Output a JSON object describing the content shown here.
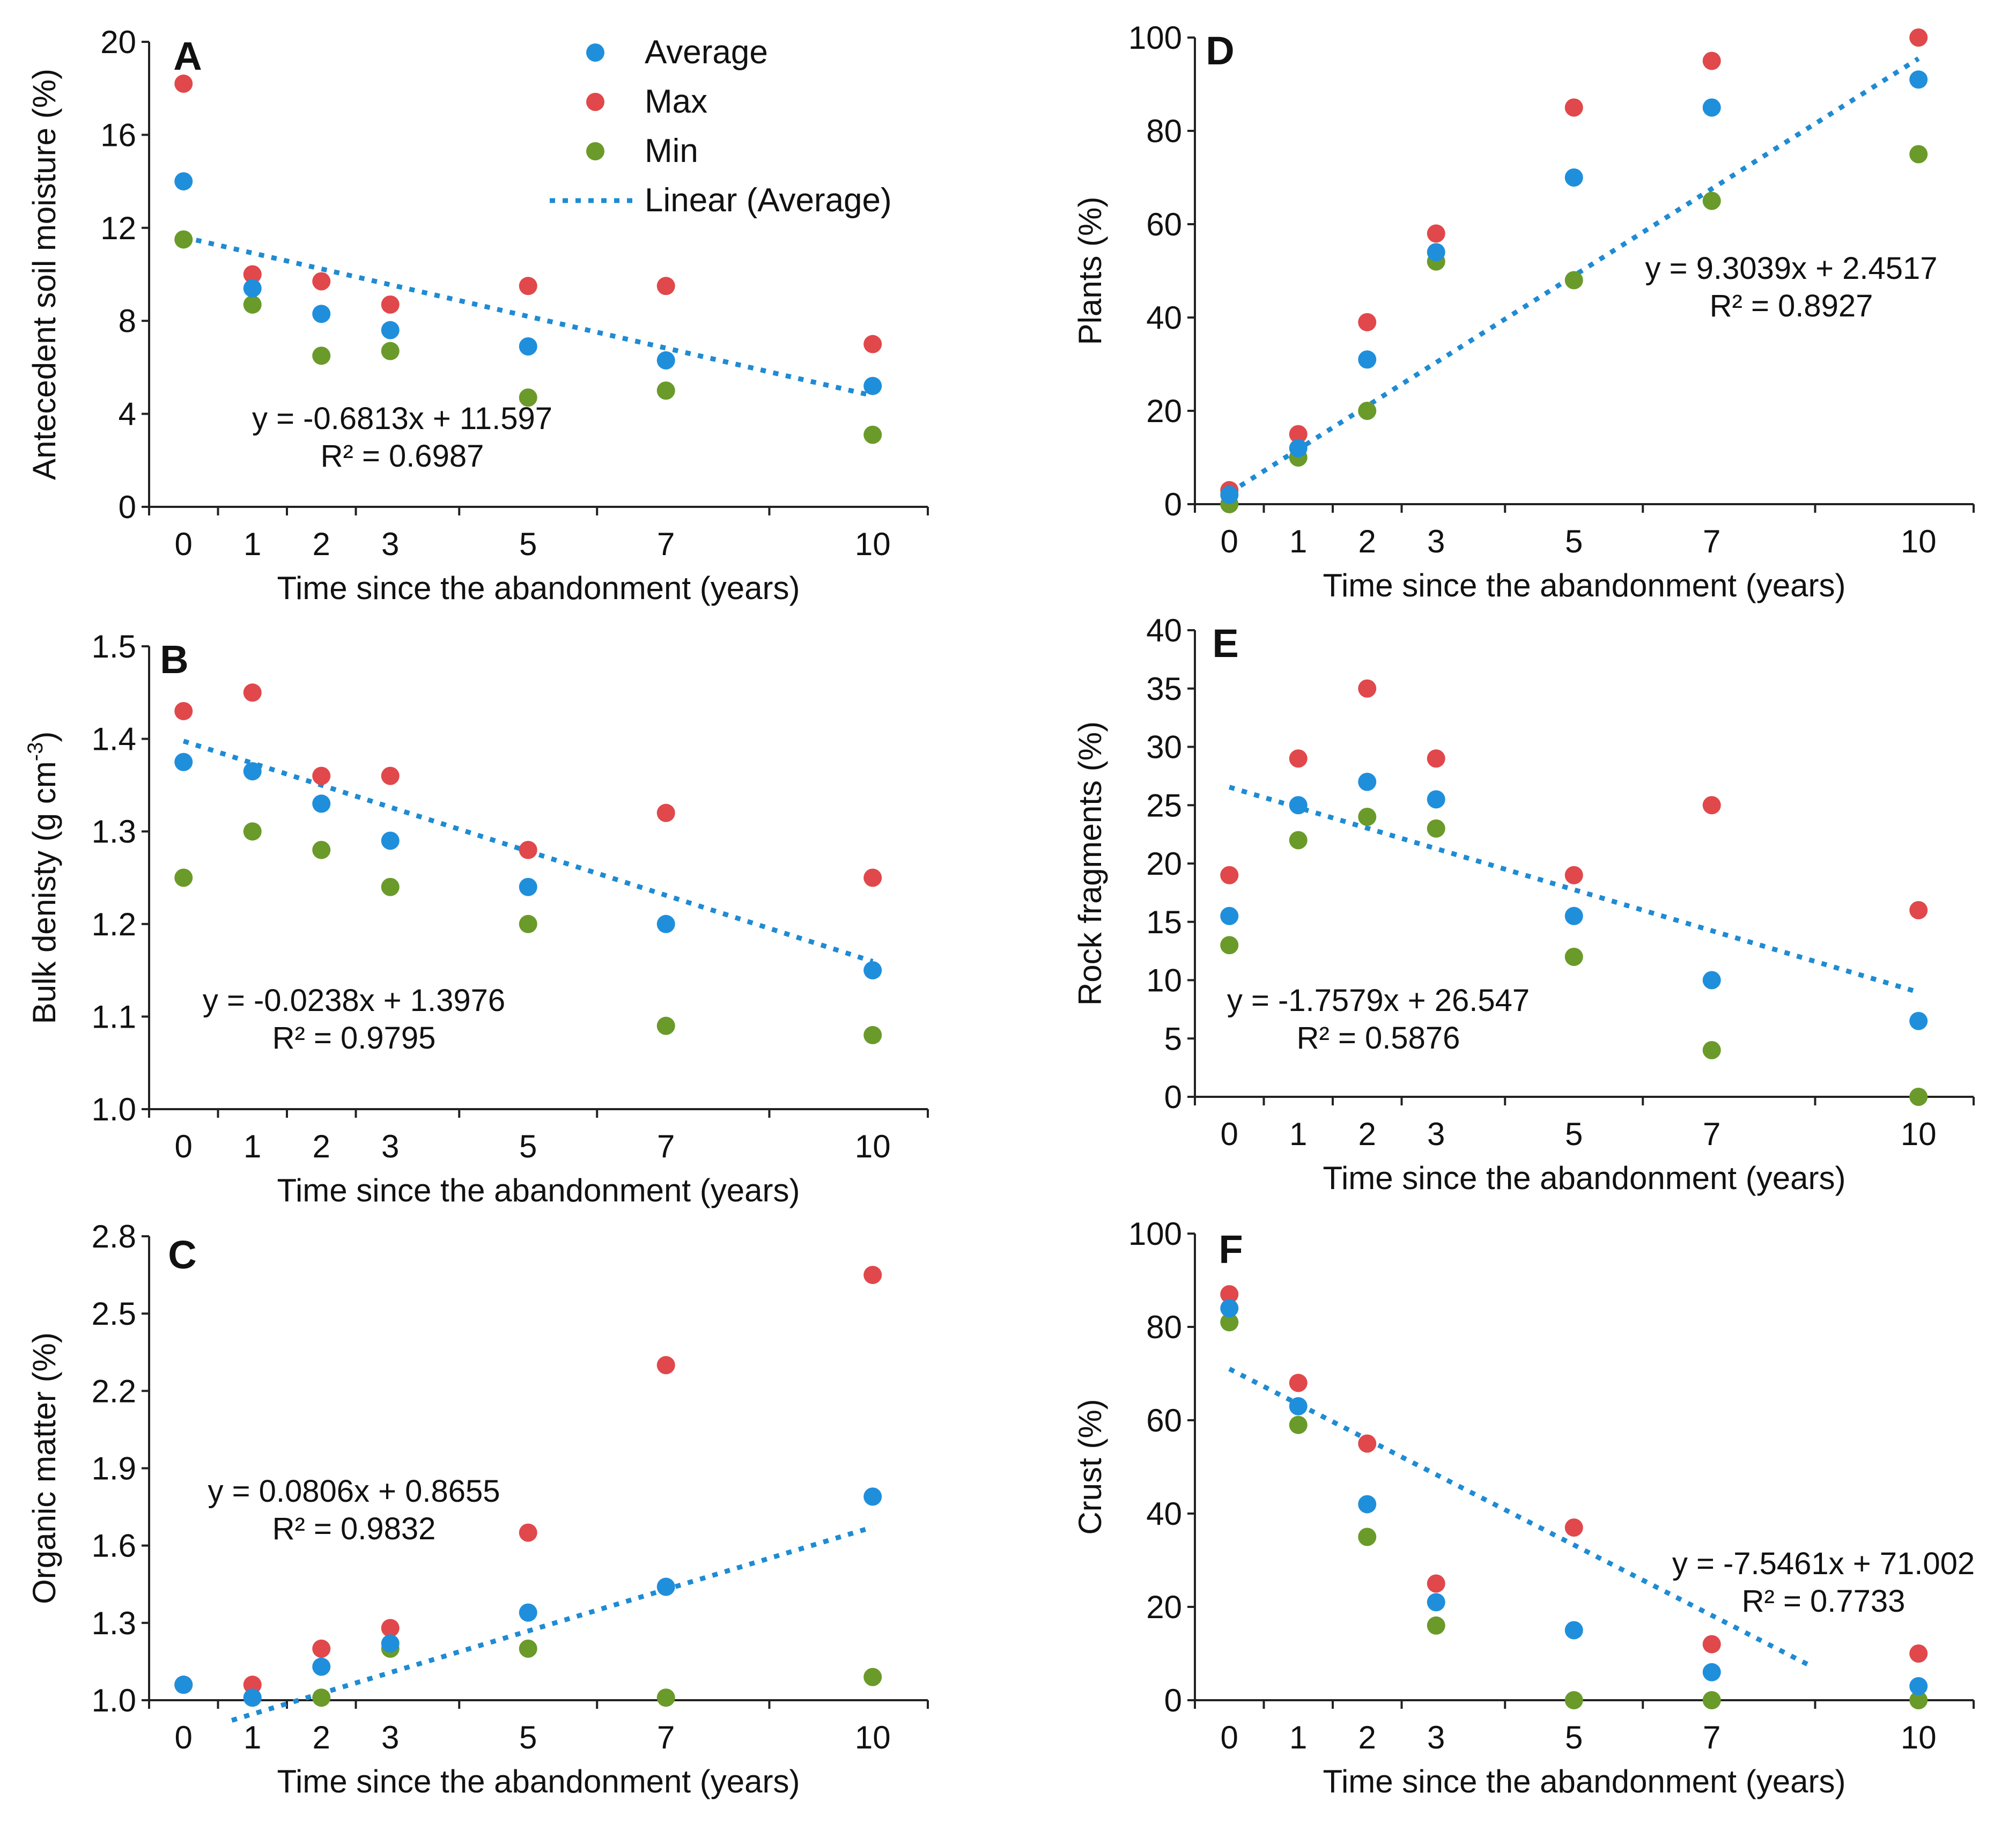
{
  "legend": {
    "items": [
      {
        "label": "Average",
        "color": "#1f8fdc",
        "kind": "marker"
      },
      {
        "label": "Max",
        "color": "#e0484b",
        "kind": "marker"
      },
      {
        "label": "Min",
        "color": "#6a9a2a",
        "kind": "marker"
      },
      {
        "label": "Linear (Average)",
        "color": "#1f8bd3",
        "kind": "line"
      }
    ]
  },
  "chart_data": [
    {
      "id": "A",
      "letter": "A",
      "type": "scatter",
      "x": [
        0,
        1,
        2,
        3,
        5,
        7,
        10
      ],
      "xticks": [
        "0",
        "1",
        "2",
        "3",
        "5",
        "7",
        "10"
      ],
      "xlim": [
        -0.5,
        10.8
      ],
      "ylim": [
        0,
        20
      ],
      "yticks": [
        "0",
        "4",
        "8",
        "12",
        "16",
        "20"
      ],
      "xlabel": "Time since the abandonment (years)",
      "ylabel": "Antecedent soil moisture (%)",
      "series": [
        {
          "name": "Average",
          "color": "#1f8fdc",
          "values": [
            14.0,
            9.4,
            8.3,
            7.6,
            6.9,
            6.3,
            5.2
          ]
        },
        {
          "name": "Max",
          "color": "#e0484b",
          "values": [
            18.2,
            10.0,
            9.7,
            8.7,
            9.5,
            9.5,
            7.0
          ]
        },
        {
          "name": "Min",
          "color": "#6a9a2a",
          "values": [
            11.5,
            8.7,
            6.5,
            6.7,
            4.7,
            5.0,
            3.1
          ]
        }
      ],
      "trend": {
        "slope": -0.6813,
        "intercept": 11.597,
        "x_start": 0,
        "x_end": 10
      },
      "equation": "y = -0.6813x + 11.597",
      "r2": "R² = 0.6987"
    },
    {
      "id": "B",
      "letter": "B",
      "type": "scatter",
      "x": [
        0,
        1,
        2,
        3,
        5,
        7,
        10
      ],
      "xticks": [
        "0",
        "1",
        "2",
        "3",
        "5",
        "7",
        "10"
      ],
      "xlim": [
        -0.5,
        10.8
      ],
      "ylim": [
        1.0,
        1.5
      ],
      "yticks": [
        "1.0",
        "1.1",
        "1.2",
        "1.3",
        "1.4",
        "1.5"
      ],
      "xlabel": "Time since the abandonment (years)",
      "ylabel": "Bulk denisty (g cm",
      "ylabel_sup": "-3",
      "ylabel_tail": ")",
      "series": [
        {
          "name": "Average",
          "color": "#1f8fdc",
          "values": [
            1.375,
            1.365,
            1.33,
            1.29,
            1.24,
            1.2,
            1.15
          ]
        },
        {
          "name": "Max",
          "color": "#e0484b",
          "values": [
            1.43,
            1.45,
            1.36,
            1.36,
            1.28,
            1.32,
            1.25
          ]
        },
        {
          "name": "Min",
          "color": "#6a9a2a",
          "values": [
            1.25,
            1.3,
            1.28,
            1.24,
            1.2,
            1.09,
            1.08
          ]
        }
      ],
      "trend": {
        "slope": -0.0238,
        "intercept": 1.3976,
        "x_start": 0,
        "x_end": 10
      },
      "equation": "y = -0.0238x + 1.3976",
      "r2": "R² = 0.9795"
    },
    {
      "id": "C",
      "letter": "C",
      "type": "scatter",
      "x": [
        0,
        1,
        2,
        3,
        5,
        7,
        10
      ],
      "xticks": [
        "0",
        "1",
        "2",
        "3",
        "5",
        "7",
        "10"
      ],
      "xlim": [
        -0.5,
        10.8
      ],
      "ylim": [
        1.0,
        2.8
      ],
      "yticks": [
        "1.0",
        "1.3",
        "1.6",
        "1.9",
        "2.2",
        "2.5",
        "2.8"
      ],
      "xlabel": "Time since the abandonment (years)",
      "ylabel": "Organic matter (%)",
      "series": [
        {
          "name": "Average",
          "color": "#1f8fdc",
          "values": [
            1.06,
            1.01,
            1.13,
            1.22,
            1.34,
            1.44,
            1.79
          ]
        },
        {
          "name": "Max",
          "color": "#e0484b",
          "values": [
            1.06,
            1.06,
            1.2,
            1.28,
            1.65,
            2.3,
            2.65
          ]
        },
        {
          "name": "Min",
          "color": "#6a9a2a",
          "values": [
            1.06,
            1.01,
            1.01,
            1.2,
            1.2,
            1.01,
            1.09
          ]
        }
      ],
      "trend": {
        "slope": 0.0806,
        "intercept": 0.8655,
        "x_start": 0.7,
        "x_end": 10
      },
      "equation": "y = 0.0806x + 0.8655",
      "r2": "R² = 0.9832"
    },
    {
      "id": "D",
      "letter": "D",
      "type": "scatter",
      "x": [
        0,
        1,
        2,
        3,
        5,
        7,
        10
      ],
      "xticks": [
        "0",
        "1",
        "2",
        "3",
        "5",
        "7",
        "10"
      ],
      "xlim": [
        -0.5,
        10.8
      ],
      "ylim": [
        0,
        100
      ],
      "yticks": [
        "0",
        "20",
        "40",
        "60",
        "80",
        "100"
      ],
      "xlabel": "Time since the abandonment (years)",
      "ylabel": "Plants (%)",
      "series": [
        {
          "name": "Average",
          "color": "#1f8fdc",
          "values": [
            2,
            12,
            31,
            54,
            70,
            85,
            91
          ]
        },
        {
          "name": "Max",
          "color": "#e0484b",
          "values": [
            3,
            15,
            39,
            58,
            85,
            95,
            100
          ]
        },
        {
          "name": "Min",
          "color": "#6a9a2a",
          "values": [
            0,
            10,
            20,
            52,
            48,
            65,
            75
          ]
        }
      ],
      "trend": {
        "slope": 9.3039,
        "intercept": 2.4517,
        "x_start": 0,
        "x_end": 10
      },
      "equation": "y = 9.3039x + 2.4517",
      "r2": "R² = 0.8927"
    },
    {
      "id": "E",
      "letter": "E",
      "type": "scatter",
      "x": [
        0,
        1,
        2,
        3,
        5,
        7,
        10
      ],
      "xticks": [
        "0",
        "1",
        "2",
        "3",
        "5",
        "7",
        "10"
      ],
      "xlim": [
        -0.5,
        10.8
      ],
      "ylim": [
        0,
        40
      ],
      "yticks": [
        "0",
        "5",
        "10",
        "15",
        "20",
        "25",
        "30",
        "35",
        "40"
      ],
      "xlabel": "Time since the abandonment (years)",
      "ylabel": "Rock fragments (%)",
      "series": [
        {
          "name": "Average",
          "color": "#1f8fdc",
          "values": [
            15.5,
            25,
            27,
            25.5,
            15.5,
            10,
            6.5
          ]
        },
        {
          "name": "Max",
          "color": "#e0484b",
          "values": [
            19,
            29,
            35,
            29,
            19,
            25,
            16
          ]
        },
        {
          "name": "Min",
          "color": "#6a9a2a",
          "values": [
            13,
            22,
            24,
            23,
            12,
            4,
            0
          ]
        }
      ],
      "trend": {
        "slope": -1.7579,
        "intercept": 26.547,
        "x_start": 0,
        "x_end": 10
      },
      "equation": "y = -1.7579x + 26.547",
      "r2": "R² = 0.5876"
    },
    {
      "id": "F",
      "letter": "F",
      "type": "scatter",
      "x": [
        0,
        1,
        2,
        3,
        5,
        7,
        10
      ],
      "xticks": [
        "0",
        "1",
        "2",
        "3",
        "5",
        "7",
        "10"
      ],
      "xlim": [
        -0.5,
        10.8
      ],
      "ylim": [
        0,
        100
      ],
      "yticks": [
        "0",
        "20",
        "40",
        "60",
        "80",
        "100"
      ],
      "xlabel": "Time since the abandonment (years)",
      "ylabel": "Crust (%)",
      "series": [
        {
          "name": "Average",
          "color": "#1f8fdc",
          "values": [
            84,
            63,
            42,
            21,
            15,
            6,
            3
          ]
        },
        {
          "name": "Max",
          "color": "#e0484b",
          "values": [
            87,
            68,
            55,
            25,
            37,
            12,
            10
          ]
        },
        {
          "name": "Min",
          "color": "#6a9a2a",
          "values": [
            81,
            59,
            35,
            16,
            0,
            0,
            0
          ]
        }
      ],
      "trend": {
        "slope": -7.5461,
        "intercept": 71.002,
        "x_start": 0,
        "x_end": 8.4
      },
      "equation": "y = -7.5461x + 71.002",
      "r2": "R² = 0.7733"
    }
  ]
}
